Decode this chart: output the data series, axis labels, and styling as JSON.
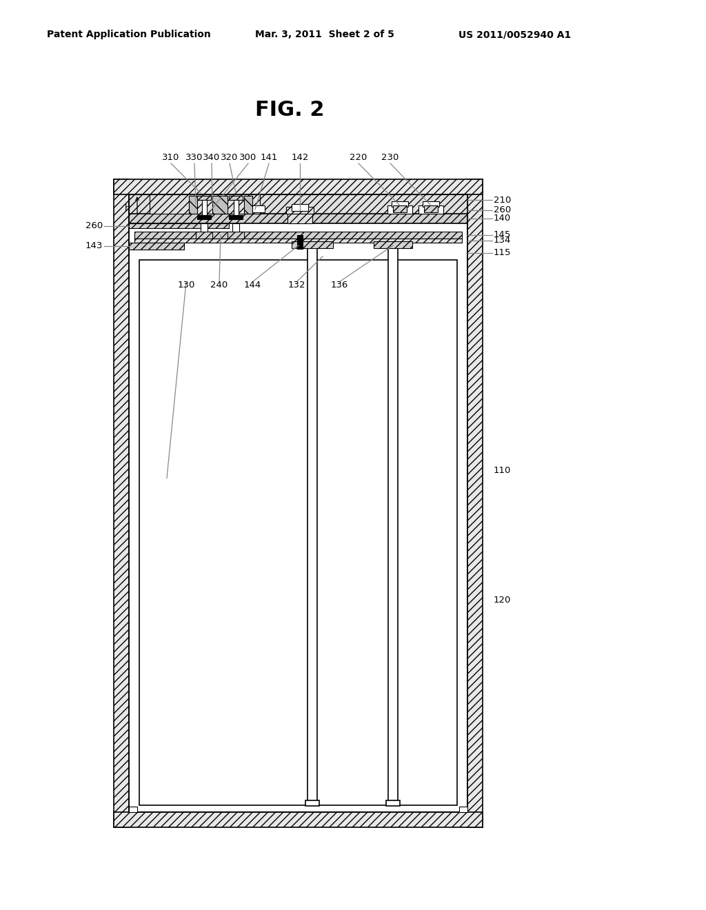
{
  "title": "FIG. 2",
  "header_left": "Patent Application Publication",
  "header_mid": "Mar. 3, 2011  Sheet 2 of 5",
  "header_right": "US 2011/0052940 A1",
  "bg_color": "#ffffff",
  "line_color": "#000000"
}
